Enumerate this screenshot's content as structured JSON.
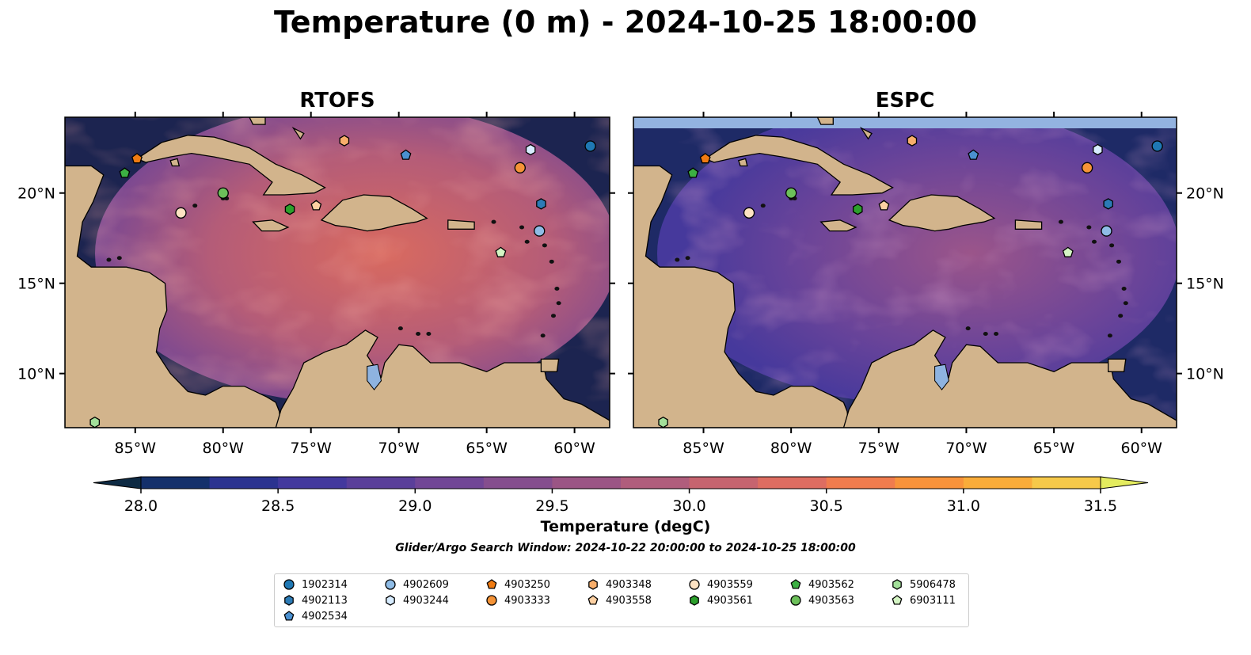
{
  "title": "Temperature (0 m) - 2024-10-25 18:00:00",
  "panels": [
    {
      "name": "RTOFS"
    },
    {
      "name": "ESPC"
    }
  ],
  "map": {
    "lon_range": [
      -89,
      -58
    ],
    "lat_range": [
      7,
      24.2
    ],
    "lon_ticks": [
      {
        "v": -85,
        "label": "85°W"
      },
      {
        "v": -80,
        "label": "80°W"
      },
      {
        "v": -75,
        "label": "75°W"
      },
      {
        "v": -70,
        "label": "70°W"
      },
      {
        "v": -65,
        "label": "65°W"
      },
      {
        "v": -60,
        "label": "60°W"
      }
    ],
    "lat_ticks": [
      {
        "v": 20,
        "label": "20°N"
      },
      {
        "v": 15,
        "label": "15°N"
      },
      {
        "v": 10,
        "label": "10°N"
      }
    ],
    "land_color": "#d2b48c",
    "ocean_deep_color": "#20254f"
  },
  "colorbar": {
    "min": 28.0,
    "max": 31.5,
    "step": 0.25,
    "ticks": [
      "28.0",
      "28.5",
      "29.0",
      "29.5",
      "30.0",
      "30.5",
      "31.0",
      "31.5"
    ],
    "label": "Temperature (degC)",
    "colors": [
      "#0d2a43",
      "#14306b",
      "#2b3390",
      "#43399e",
      "#5a3f9a",
      "#714696",
      "#854e8e",
      "#9b5585",
      "#b05d7c",
      "#c6646f",
      "#de6d61",
      "#f07c4e",
      "#f8933b",
      "#f9ac3a",
      "#f6c94a",
      "#e4ec5f"
    ]
  },
  "search_window": "Glider/Argo Search Window: 2024-10-22 20:00:00 to 2024-10-25 18:00:00",
  "floats": [
    {
      "id": "1902314",
      "marker": "circle",
      "color": "#1f78b4",
      "lon": -59.1,
      "lat": 22.6
    },
    {
      "id": "4902113",
      "marker": "hexagon",
      "color": "#2c7bb6",
      "lon": -61.9,
      "lat": 19.4
    },
    {
      "id": "4902534",
      "marker": "pentagon",
      "color": "#4a90d0",
      "lon": -69.6,
      "lat": 22.1
    },
    {
      "id": "4902609",
      "marker": "circle",
      "color": "#8fbce6",
      "lon": -62.0,
      "lat": 17.9
    },
    {
      "id": "4903244",
      "marker": "hexagon",
      "color": "#d7ecff",
      "lon": -62.5,
      "lat": 22.4
    },
    {
      "id": "4903250",
      "marker": "pentagon",
      "color": "#f07b12",
      "lon": -84.9,
      "lat": 21.9
    },
    {
      "id": "4903333",
      "marker": "circle",
      "color": "#f59337",
      "lon": -63.1,
      "lat": 21.4
    },
    {
      "id": "4903348",
      "marker": "hexagon",
      "color": "#f8ae6b",
      "lon": -73.1,
      "lat": 22.9
    },
    {
      "id": "4903558",
      "marker": "pentagon",
      "color": "#fdd0a2",
      "lon": -74.7,
      "lat": 19.3
    },
    {
      "id": "4903559",
      "marker": "circle",
      "color": "#fde2c2",
      "lon": -82.4,
      "lat": 18.9
    },
    {
      "id": "4903561",
      "marker": "hexagon",
      "color": "#2ca02c",
      "lon": -76.2,
      "lat": 19.1
    },
    {
      "id": "4903562",
      "marker": "pentagon",
      "color": "#3cb043",
      "lon": -85.6,
      "lat": 21.1
    },
    {
      "id": "4903563",
      "marker": "circle",
      "color": "#6cc05a",
      "lon": -80.0,
      "lat": 20.0
    },
    {
      "id": "5906478",
      "marker": "hexagon",
      "color": "#a3e09a",
      "lon": -87.3,
      "lat": 7.3
    },
    {
      "id": "6903111",
      "marker": "pentagon",
      "color": "#d4f5c4",
      "lon": -64.2,
      "lat": 16.7
    }
  ]
}
